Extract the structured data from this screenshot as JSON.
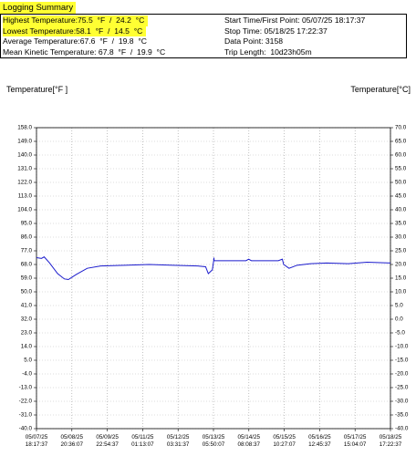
{
  "summary": {
    "title": "Logging Summary",
    "left": [
      "Highest Temperature:75.5  °F  /  24.2  °C",
      "Lowest Temperature:58.1  °F  /  14.5  °C",
      "Average Temperature:67.6  °F  /  19.8  °C",
      "Mean Kinetic Temperature: 67.8  °F  /  19.9  °C"
    ],
    "right": [
      "Start Time/First Point: 05/07/25 18:17:37",
      "Stop Time: 05/18/25 17:22:37",
      "Data Point: 3158",
      "Trip Length:  10d23h05m"
    ]
  },
  "chart_data": {
    "type": "line",
    "y_label": "Temperature[°F ]",
    "y2_label": "Temperature[°C]",
    "xlim": [
      "05/07/25 18:17:37",
      "05/18/25 17:22:37"
    ],
    "xticks": [
      "05/07/25 18:17:37",
      "05/08/25 20:36:07",
      "05/09/25 22:54:37",
      "05/11/25 01:13:07",
      "05/12/25 03:31:37",
      "05/13/25 05:50:07",
      "05/14/25 08:08:37",
      "05/15/25 10:27:07",
      "05/16/25 12:45:37",
      "05/17/25 15:04:07",
      "05/18/25 17:22:37"
    ],
    "ylim": [
      -40,
      158
    ],
    "yticks": [
      {
        "value": 158,
        "label": "158.0"
      },
      {
        "value": 149,
        "label": "149.0"
      },
      {
        "value": 140,
        "label": "140.0"
      },
      {
        "value": 131,
        "label": "131.0"
      },
      {
        "value": 122,
        "label": "122.0"
      },
      {
        "value": 113,
        "label": "113.0"
      },
      {
        "value": 104,
        "label": "104.0"
      },
      {
        "value": 95,
        "label": "95.0"
      },
      {
        "value": 86,
        "label": "86.0"
      },
      {
        "value": 77,
        "label": "77.0"
      },
      {
        "value": 68,
        "label": "68.0"
      },
      {
        "value": 59,
        "label": "59.0"
      },
      {
        "value": 50,
        "label": "50.0"
      },
      {
        "value": 41,
        "label": "41.0"
      },
      {
        "value": 32,
        "label": "32.0"
      },
      {
        "value": 23,
        "label": "23.0"
      },
      {
        "value": 14,
        "label": "14.0"
      },
      {
        "value": 5,
        "label": "5.0"
      },
      {
        "value": -4,
        "label": "-4.0"
      },
      {
        "value": -13,
        "label": "-13.0"
      },
      {
        "value": -22,
        "label": "-22.0"
      },
      {
        "value": -31,
        "label": "-31.0"
      },
      {
        "value": -40,
        "label": "-40.0"
      }
    ],
    "y2lim": [
      -40,
      70
    ],
    "y2ticks": [
      {
        "value": 70,
        "label": "70.0"
      },
      {
        "value": 65,
        "label": "65.0"
      },
      {
        "value": 60,
        "label": "60.0"
      },
      {
        "value": 55,
        "label": "55.0"
      },
      {
        "value": 50,
        "label": "50.0"
      },
      {
        "value": 45,
        "label": "45.0"
      },
      {
        "value": 40,
        "label": "40.0"
      },
      {
        "value": 35,
        "label": "35.0"
      },
      {
        "value": 30,
        "label": "30.0"
      },
      {
        "value": 25,
        "label": "25.0"
      },
      {
        "value": 20,
        "label": "20.0"
      },
      {
        "value": 15,
        "label": "15.0"
      },
      {
        "value": 10,
        "label": "10.0"
      },
      {
        "value": 5,
        "label": "5.0"
      },
      {
        "value": 0,
        "label": "0.0"
      },
      {
        "value": -5,
        "label": "-5.0"
      },
      {
        "value": -10,
        "label": "-10.0"
      },
      {
        "value": -15,
        "label": "-15.0"
      },
      {
        "value": -20,
        "label": "-20.0"
      },
      {
        "value": -25,
        "label": "-25.0"
      },
      {
        "value": -30,
        "label": "-30.0"
      },
      {
        "value": -35,
        "label": "-35.0"
      },
      {
        "value": -40,
        "label": "-40.0"
      }
    ],
    "grid": true,
    "series": [
      {
        "color": "#1a1acc",
        "x": [
          "05/07/25 18:17:37",
          "05/07/25 22:00:00",
          "05/08/25 00:00:00",
          "05/08/25 04:00:00",
          "05/08/25 10:00:00",
          "05/08/25 15:00:00",
          "05/08/25 18:00:00",
          "05/09/25 00:00:00",
          "05/09/25 08:00:00",
          "05/09/25 18:00:00",
          "05/10/25 12:00:00",
          "05/11/25 06:00:00",
          "05/12/25 00:00:00",
          "05/12/25 18:00:00",
          "05/13/25 00:00:00",
          "05/13/25 02:00:00",
          "05/13/25 05:00:00",
          "05/13/25 06:00:00",
          "05/13/25 06:10:00",
          "05/13/25 06:20:00",
          "05/14/25 06:00:00",
          "05/14/25 08:00:00",
          "05/14/25 10:00:00",
          "05/15/25 06:00:00",
          "05/15/25 09:00:00",
          "05/15/25 10:00:00",
          "05/15/25 14:00:00",
          "05/15/25 20:00:00",
          "05/16/25 06:00:00",
          "05/16/25 18:00:00",
          "05/17/25 10:00:00",
          "05/18/25 00:00:00",
          "05/18/25 17:22:37"
        ],
        "values": [
          72.5,
          72.0,
          73.0,
          69.0,
          62.0,
          58.5,
          58.1,
          61.5,
          65.5,
          67.0,
          67.5,
          68.0,
          67.5,
          67.0,
          66.5,
          62.0,
          64.5,
          70.5,
          72.5,
          70.5,
          70.5,
          71.5,
          70.5,
          70.5,
          71.5,
          68.0,
          65.5,
          67.5,
          68.5,
          69.0,
          68.5,
          69.5,
          69.0
        ]
      }
    ]
  }
}
